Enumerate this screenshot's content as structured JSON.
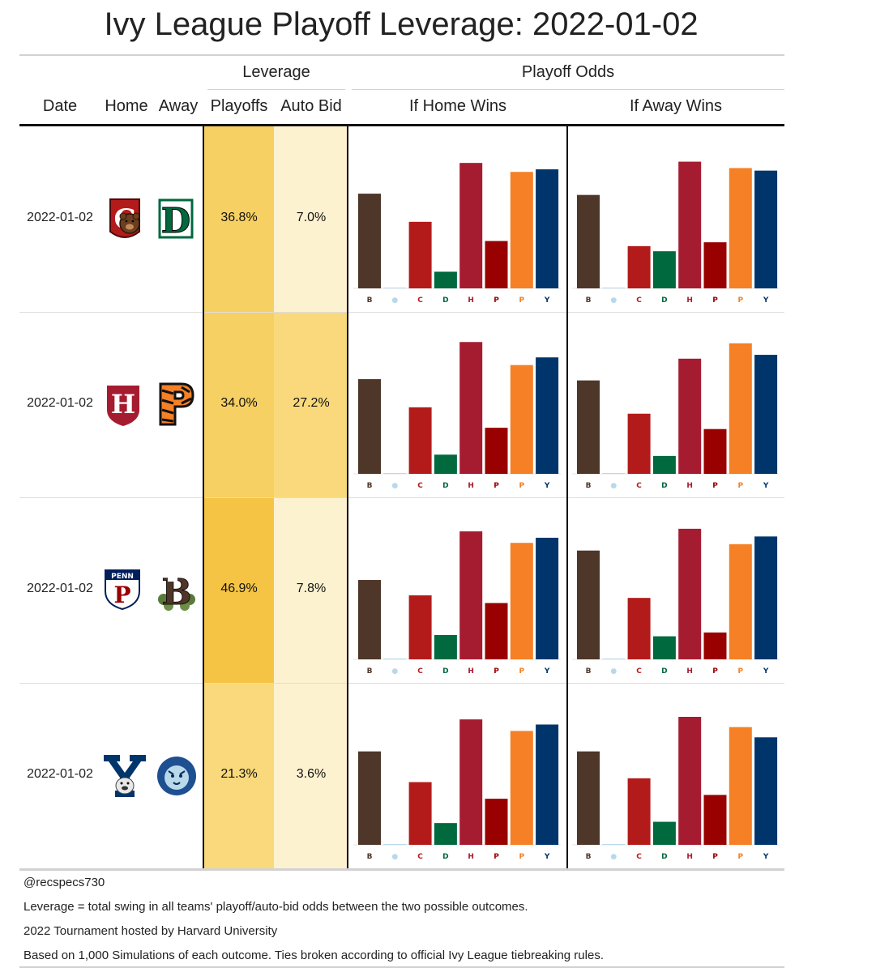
{
  "title": "Ivy League Playoff Leverage: 2022-01-02",
  "headers": {
    "leverage_group": "Leverage",
    "odds_group": "Playoff Odds",
    "date": "Date",
    "home": "Home",
    "away": "Away",
    "playoffs": "Playoffs",
    "auto_bid": "Auto Bid",
    "if_home": "If Home Wins",
    "if_away": "If Away Wins"
  },
  "colors": {
    "heat_strong": "#f5c444",
    "heat_mid": "#f7d063",
    "heat_light": "#f9d97b",
    "heat_faint": "#fdf2d0",
    "gridline": "#d2d2d2",
    "brown": "#4e3629",
    "columbia": "#b9d9eb",
    "cornell": "#b31b1b",
    "dartmouth": "#00693e",
    "harvard": "#a51c30",
    "penn": "#990000",
    "princeton": "#f58025",
    "yale": "#00356b"
  },
  "rows": [
    {
      "date": "2022-01-02",
      "home_logo": "cornell-logo",
      "away_logo": "dartmouth-logo",
      "playoffs": "36.8%",
      "auto_bid": "7.0%"
    },
    {
      "date": "2022-01-02",
      "home_logo": "harvard-logo",
      "away_logo": "princeton-logo",
      "playoffs": "34.0%",
      "auto_bid": "27.2%"
    },
    {
      "date": "2022-01-02",
      "home_logo": "penn-logo",
      "away_logo": "brown-logo",
      "playoffs": "46.9%",
      "auto_bid": "7.8%"
    },
    {
      "date": "2022-01-02",
      "home_logo": "yale-logo",
      "away_logo": "columbia-logo",
      "playoffs": "21.3%",
      "auto_bid": "3.6%"
    }
  ],
  "footer": [
    "@recspecs730",
    "Leverage = total swing in all teams' playoff/auto-bid odds between the two possible outcomes.",
    "2022 Tournament hosted by Harvard University",
    "Based on 1,000 Simulations of each outcome. Ties broken according to official Ivy League tiebreaking rules."
  ],
  "chart_data": [
    {
      "type": "bar",
      "game": "Cornell vs Dartmouth",
      "outcome": "If Home Wins",
      "categories": [
        "Brown",
        "Columbia",
        "Cornell",
        "Dartmouth",
        "Harvard",
        "Penn",
        "Princeton",
        "Yale"
      ],
      "values": [
        0.74,
        0.0,
        0.52,
        0.13,
        0.98,
        0.37,
        0.91,
        0.93
      ],
      "ylim": [
        0,
        1
      ]
    },
    {
      "type": "bar",
      "game": "Cornell vs Dartmouth",
      "outcome": "If Away Wins",
      "categories": [
        "Brown",
        "Columbia",
        "Cornell",
        "Dartmouth",
        "Harvard",
        "Penn",
        "Princeton",
        "Yale"
      ],
      "values": [
        0.73,
        0.0,
        0.33,
        0.29,
        0.99,
        0.36,
        0.94,
        0.92
      ],
      "ylim": [
        0,
        1
      ]
    },
    {
      "type": "bar",
      "game": "Harvard vs Princeton",
      "outcome": "If Home Wins",
      "categories": [
        "Brown",
        "Columbia",
        "Cornell",
        "Dartmouth",
        "Harvard",
        "Penn",
        "Princeton",
        "Yale"
      ],
      "values": [
        0.74,
        0.0,
        0.52,
        0.15,
        1.03,
        0.36,
        0.85,
        0.91
      ],
      "ylim": [
        0,
        1
      ]
    },
    {
      "type": "bar",
      "game": "Harvard vs Princeton",
      "outcome": "If Away Wins",
      "categories": [
        "Brown",
        "Columbia",
        "Cornell",
        "Dartmouth",
        "Harvard",
        "Penn",
        "Princeton",
        "Yale"
      ],
      "values": [
        0.73,
        0.0,
        0.47,
        0.14,
        0.9,
        0.35,
        1.02,
        0.93
      ],
      "ylim": [
        0,
        1
      ]
    },
    {
      "type": "bar",
      "game": "Penn vs Brown",
      "outcome": "If Home Wins",
      "categories": [
        "Brown",
        "Columbia",
        "Cornell",
        "Dartmouth",
        "Harvard",
        "Penn",
        "Princeton",
        "Yale"
      ],
      "values": [
        0.62,
        0.0,
        0.5,
        0.19,
        1.0,
        0.44,
        0.91,
        0.95
      ],
      "ylim": [
        0,
        1
      ]
    },
    {
      "type": "bar",
      "game": "Penn vs Brown",
      "outcome": "If Away Wins",
      "categories": [
        "Brown",
        "Columbia",
        "Cornell",
        "Dartmouth",
        "Harvard",
        "Penn",
        "Princeton",
        "Yale"
      ],
      "values": [
        0.85,
        0.0,
        0.48,
        0.18,
        1.02,
        0.21,
        0.9,
        0.96
      ],
      "ylim": [
        0,
        1
      ]
    },
    {
      "type": "bar",
      "game": "Yale vs Columbia",
      "outcome": "If Home Wins",
      "categories": [
        "Brown",
        "Columbia",
        "Cornell",
        "Dartmouth",
        "Harvard",
        "Penn",
        "Princeton",
        "Yale"
      ],
      "values": [
        0.73,
        0.0,
        0.49,
        0.17,
        0.98,
        0.36,
        0.89,
        0.94
      ],
      "ylim": [
        0,
        1
      ]
    },
    {
      "type": "bar",
      "game": "Yale vs Columbia",
      "outcome": "If Away Wins",
      "categories": [
        "Brown",
        "Columbia",
        "Cornell",
        "Dartmouth",
        "Harvard",
        "Penn",
        "Princeton",
        "Yale"
      ],
      "values": [
        0.73,
        0.0,
        0.52,
        0.18,
        1.0,
        0.39,
        0.92,
        0.84
      ],
      "ylim": [
        0,
        1
      ]
    }
  ]
}
